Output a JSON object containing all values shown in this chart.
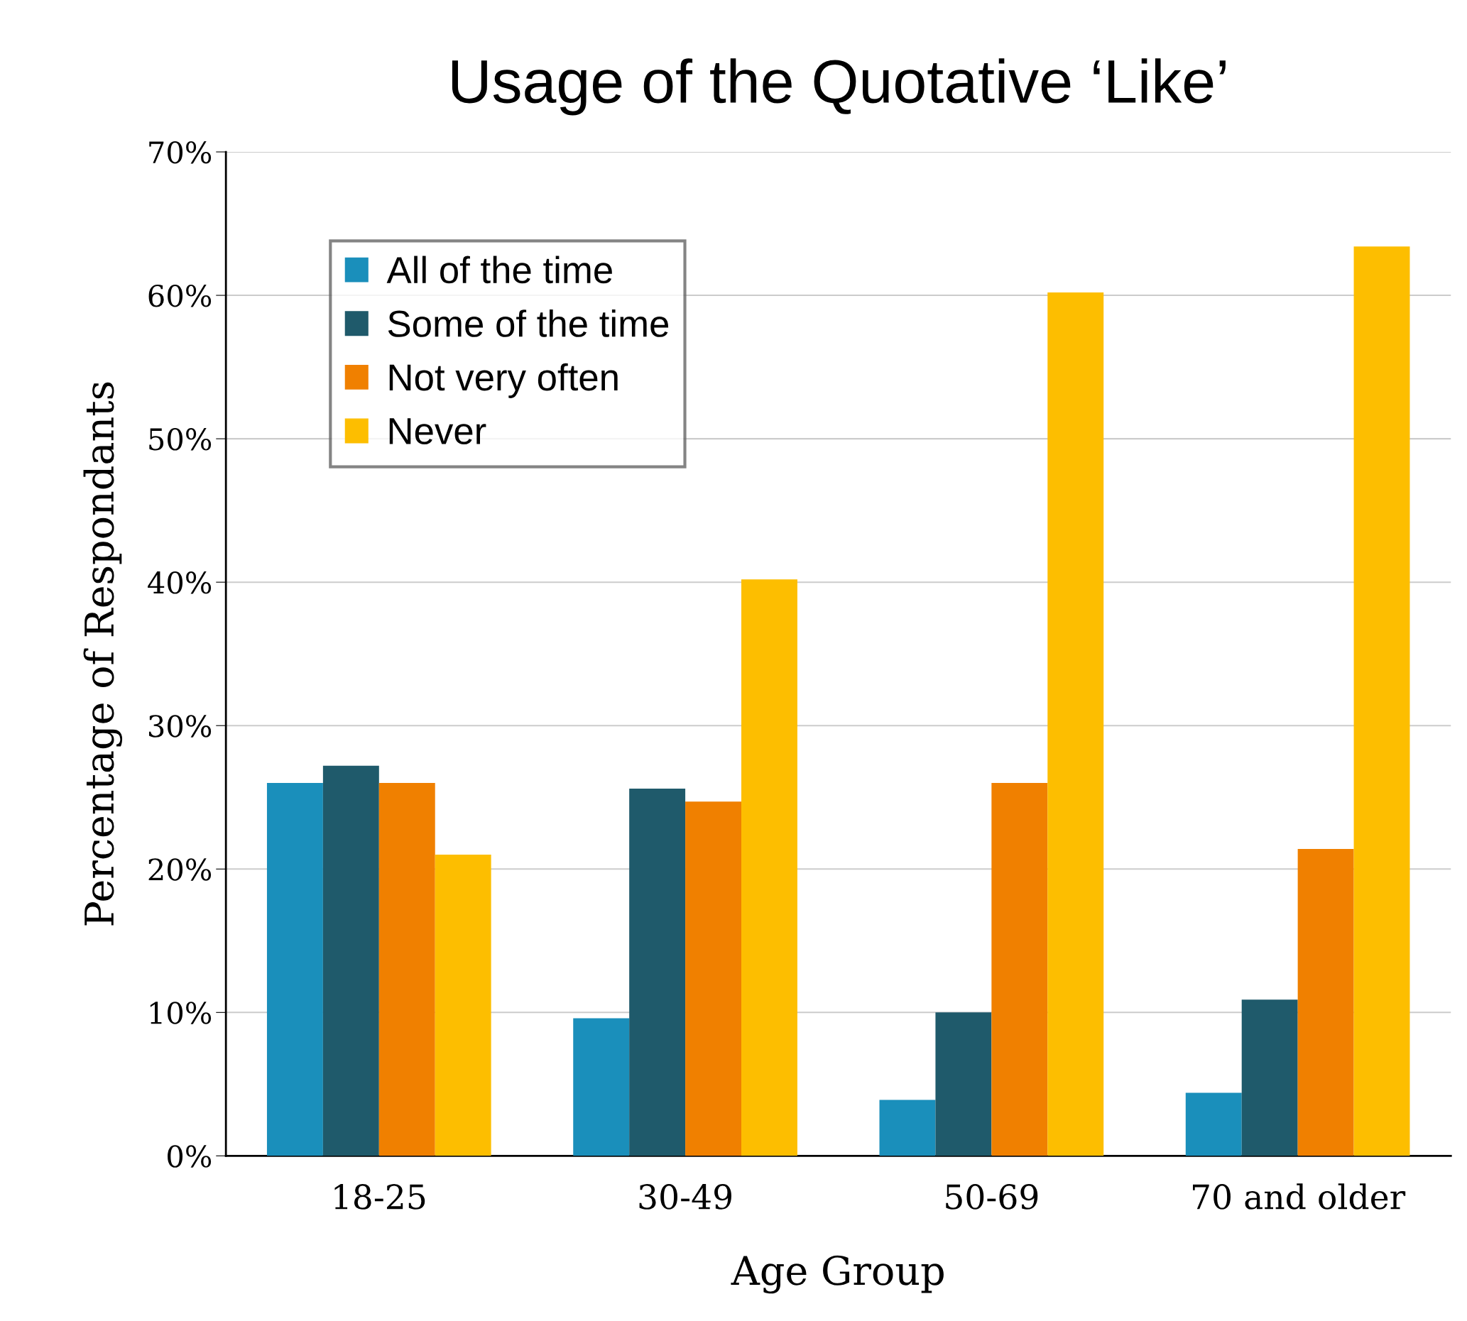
{
  "chart_data": {
    "type": "bar",
    "title": "Usage of the Quotative ‘Like’",
    "xlabel": "Age Group",
    "ylabel": "Percentage of Respondants",
    "categories": [
      "18-25",
      "30-49",
      "50-69",
      "70 and older"
    ],
    "series": [
      {
        "name": "All of the time",
        "color": "#1a8fbb",
        "values": [
          26.0,
          9.6,
          3.9,
          4.4
        ]
      },
      {
        "name": "Some of the time",
        "color": "#1f5a6b",
        "values": [
          27.2,
          25.6,
          10.0,
          10.9
        ]
      },
      {
        "name": "Not very often",
        "color": "#f08000",
        "values": [
          26.0,
          24.7,
          26.0,
          21.4
        ]
      },
      {
        "name": "Never",
        "color": "#fdbe00",
        "values": [
          21.0,
          40.2,
          60.2,
          63.4
        ]
      }
    ],
    "ylim": [
      0,
      70
    ],
    "yticks": [
      {
        "value": 0,
        "label": "0%"
      },
      {
        "value": 10,
        "label": "10%"
      },
      {
        "value": 20,
        "label": "20%"
      },
      {
        "value": 30,
        "label": "30%"
      },
      {
        "value": 40,
        "label": "40%"
      },
      {
        "value": 50,
        "label": "50%"
      },
      {
        "value": 60,
        "label": "60%"
      },
      {
        "value": 70,
        "label": "70%"
      }
    ],
    "grid": "y",
    "legend": "top left"
  }
}
